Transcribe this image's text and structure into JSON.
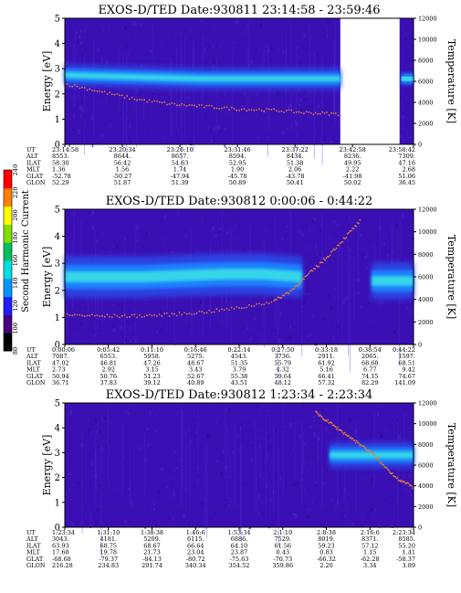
{
  "colors": {
    "background": "#3a10b4",
    "noise": "#4a1ec8",
    "band_core": "#35d6e8",
    "band_mid": "#1f7fff",
    "band_edge": "#2a48e6",
    "trace": "#e07a3c",
    "colorbar": [
      "#000000",
      "#4b0082",
      "#1e1eff",
      "#0096ff",
      "#00e0e0",
      "#00c060",
      "#80e000",
      "#ffff00",
      "#ff8000",
      "#ff0000"
    ]
  },
  "colorbar": {
    "label": "Second Harmonic Current",
    "ticks": [
      "80",
      "100",
      "120",
      "140",
      "160",
      "180",
      "200",
      "220",
      "240"
    ]
  },
  "row_labels": [
    "UT",
    "ALT",
    "ILAT",
    "MLT",
    "GLAT",
    "GLON"
  ],
  "chart_data": [
    {
      "type": "heatmap",
      "title": "EXOS-D/TED   Date:930811  23:14:58 - 23:59:46",
      "ylabel": "Energy [eV]",
      "y2label": "Temperature [K]",
      "ylim": [
        0,
        5
      ],
      "y2lim": [
        0,
        12000
      ],
      "yticks": [
        "0",
        "1",
        "2",
        "3",
        "4",
        "5"
      ],
      "y2ticks": [
        "0",
        "2000",
        "4000",
        "6000",
        "8000",
        "10000",
        "12000"
      ],
      "data_end_fraction": 0.79,
      "band": {
        "center": [
          2.75,
          2.7,
          2.65,
          2.6,
          2.6,
          2.6,
          2.6
        ],
        "width": 0.5,
        "x_range": [
          0,
          0.79
        ]
      },
      "side_band": {
        "center": 2.6,
        "width": 0.45
      },
      "trace": {
        "x": [
          0,
          0.1,
          0.2,
          0.3,
          0.4,
          0.5,
          0.6,
          0.7,
          0.79
        ],
        "y": [
          2.4,
          2.1,
          1.8,
          1.6,
          1.5,
          1.4,
          1.35,
          1.25,
          1.2
        ]
      },
      "rows": [
        [
          "23:14:58",
          "23:20:34",
          "23:26:10",
          "23:31:46",
          "23:37:22",
          "23:42:58",
          "23:58:42"
        ],
        [
          "8553.",
          "8644.",
          "8657.",
          "8594.",
          "8434.",
          "8236.",
          "7309."
        ],
        [
          "58.30",
          "56.42",
          "54.63",
          "52.95",
          "51.38",
          "49.95",
          "47.16"
        ],
        [
          "1.36",
          "1.56",
          "1.74",
          "1.90",
          "2.06",
          "2.22",
          "2.68"
        ],
        [
          "-52.78",
          "-50.27",
          "-47.94",
          "-45.78",
          "-43.78",
          "-41.98",
          "51.06"
        ],
        [
          "52.29",
          "51.87",
          "51.39",
          "50.89",
          "50.41",
          "50.02",
          "36.45"
        ]
      ],
      "row_positions": [
        0,
        0.165,
        0.33,
        0.495,
        0.66,
        0.825,
        1.0
      ]
    },
    {
      "type": "heatmap",
      "title": "EXOS-D/TED   Date:930812  0:00:06 - 0:44:22",
      "ylabel": "Energy [eV]",
      "y2label": "Temperature [K]",
      "ylim": [
        0,
        5
      ],
      "y2lim": [
        0,
        12000
      ],
      "yticks": [
        "0",
        "1",
        "2",
        "3",
        "4",
        "5"
      ],
      "y2ticks": [
        "0",
        "2000",
        "4000",
        "6000",
        "8000",
        "10000",
        "12000"
      ],
      "data_end_fraction": 1.0,
      "band": {
        "center": [
          2.5,
          2.5,
          2.5,
          2.55,
          2.6,
          2.6,
          2.5
        ],
        "width": 0.9,
        "x_range": [
          0,
          0.68
        ]
      },
      "band2": {
        "center": 2.35,
        "width": 0.8,
        "x_range": [
          0.88,
          1.0
        ]
      },
      "trace": {
        "x": [
          0,
          0.1,
          0.2,
          0.3,
          0.4,
          0.5,
          0.6,
          0.65,
          0.7,
          0.75,
          0.8,
          0.85
        ],
        "y": [
          1.1,
          1.05,
          1.05,
          1.1,
          1.2,
          1.35,
          1.6,
          2.0,
          2.6,
          3.2,
          3.9,
          4.6
        ]
      },
      "rows": [
        [
          "0:00:06",
          "0:05:42",
          "0:11:10",
          "0:16:46",
          "0:22:14",
          "0:27:50",
          "0:33:18",
          "0:38:54",
          "0:44:22"
        ],
        [
          "7087.",
          "6553.",
          "5958.",
          "5275.",
          "4543.",
          "3736.",
          "2911.",
          "2065.",
          "1597."
        ],
        [
          "47.02",
          "46.81",
          "47.26",
          "48.67",
          "51.35",
          "55.79",
          "61.92",
          "68.68",
          "68.51"
        ],
        [
          "2.73",
          "2.92",
          "3.15",
          "3.43",
          "3.79",
          "4.32",
          "5.16",
          "6.77",
          "9.42"
        ],
        [
          "50.94",
          "50.76",
          "51.23",
          "52.67",
          "55.38",
          "59.64",
          "66.41",
          "74.15",
          "74.67"
        ],
        [
          "36.71",
          "37.83",
          "39.12",
          "40.89",
          "43.51",
          "48.12",
          "57.32",
          "82.29",
          "141.09"
        ]
      ],
      "row_positions": [
        0,
        0.125,
        0.25,
        0.375,
        0.5,
        0.625,
        0.75,
        0.875,
        1.0
      ]
    },
    {
      "type": "heatmap",
      "title": "EXOS-D/TED   Date:930812  1:23:34 - 2:23:34",
      "ylabel": "Energy [eV]",
      "y2label": "Temperature [K]",
      "ylim": [
        0,
        5
      ],
      "y2lim": [
        0,
        12000
      ],
      "yticks": [
        "0",
        "1",
        "2",
        "3",
        "4",
        "5"
      ],
      "y2ticks": [
        "0",
        "2000",
        "4000",
        "6000",
        "8000",
        "10000",
        "12000"
      ],
      "data_end_fraction": 1.0,
      "band": {
        "center": [
          2.9,
          2.9,
          2.9
        ],
        "width": 0.6,
        "x_range": [
          0.76,
          1.0
        ]
      },
      "trace": {
        "x": [
          0.72,
          0.76,
          0.8,
          0.84,
          0.88,
          0.92,
          0.96,
          1.0
        ],
        "y": [
          4.6,
          4.2,
          3.8,
          3.4,
          3.0,
          2.4,
          1.9,
          1.6
        ]
      },
      "rows": [
        [
          "1:23:34",
          "1:31:10",
          "1:38:38",
          "1:46:6",
          "1:53:34",
          "2:1:10",
          "2:8:38",
          "2:16:6",
          "2:23:34"
        ],
        [
          "3043.",
          "4181.",
          "5209.",
          "6115.",
          "6886.",
          "7529.",
          "8019.",
          "8371.",
          "8585."
        ],
        [
          "63.93",
          "68.75",
          "68.67",
          "66.64",
          "64.10",
          "61.56",
          "59.23",
          "57.12",
          "55.20"
        ],
        [
          "17.68",
          "19.78",
          "21.73",
          "23.04",
          "23.87",
          "0.43",
          "0.83",
          "1.15",
          "1.41"
        ],
        [
          "-68.68",
          "-79.37",
          "-84.13",
          "-80.72",
          "-75.63",
          "-70.73",
          "-66.32",
          "-62.28",
          "-58.37"
        ],
        [
          "216.28",
          "234.83",
          "291.74",
          "340.34",
          "354.52",
          "359.86",
          "2.20",
          "3.34",
          "3.89"
        ]
      ],
      "row_positions": [
        0,
        0.125,
        0.25,
        0.375,
        0.5,
        0.625,
        0.75,
        0.875,
        1.0
      ]
    }
  ]
}
